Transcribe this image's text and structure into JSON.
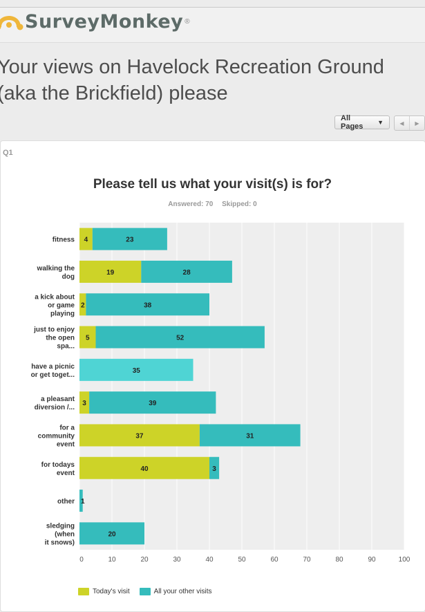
{
  "brand": {
    "name": "SurveyMonkey",
    "reg": "®"
  },
  "survey_title": "Your views on Havelock Recreation Ground (aka the Brickfield) please",
  "pager": {
    "select_label": "All Pages",
    "prev_icon": "chevron-left-icon",
    "next_icon": "chevron-right-icon"
  },
  "question": {
    "number": "Q1",
    "answered_label": "Answered: 70",
    "skipped_label": "Skipped: 0"
  },
  "colors": {
    "today": "#cdd328",
    "other": "#35bcbc",
    "other_highlight": "#4fd4d4",
    "grid": "#ffffff",
    "plot_bg": "#eeeeee"
  },
  "chart_data": {
    "type": "bar",
    "orientation": "horizontal",
    "stacked": true,
    "title": "Please tell us what your visit(s) is for?",
    "categories": [
      [
        "fitness"
      ],
      [
        "walking the",
        "dog"
      ],
      [
        "a kick about",
        "or game",
        "playing"
      ],
      [
        "just to enjoy",
        "the open",
        "spa..."
      ],
      [
        "have a picnic",
        "or get toget..."
      ],
      [
        "a pleasant",
        "diversion /..."
      ],
      [
        "for a",
        "community",
        "event"
      ],
      [
        "for todays",
        "event"
      ],
      [
        "other"
      ],
      [
        "sledging",
        "(when",
        "it snows)"
      ]
    ],
    "series": [
      {
        "name": "Today's visit",
        "values": [
          4,
          19,
          2,
          5,
          0,
          3,
          37,
          40,
          0,
          0
        ]
      },
      {
        "name": "All your other visits",
        "values": [
          23,
          28,
          38,
          52,
          35,
          39,
          31,
          3,
          1,
          20
        ]
      }
    ],
    "xlim": [
      0,
      100
    ],
    "xticks": [
      0,
      10,
      20,
      30,
      40,
      50,
      60,
      70,
      80,
      90,
      100
    ],
    "grid": true,
    "legend_position": "bottom"
  }
}
